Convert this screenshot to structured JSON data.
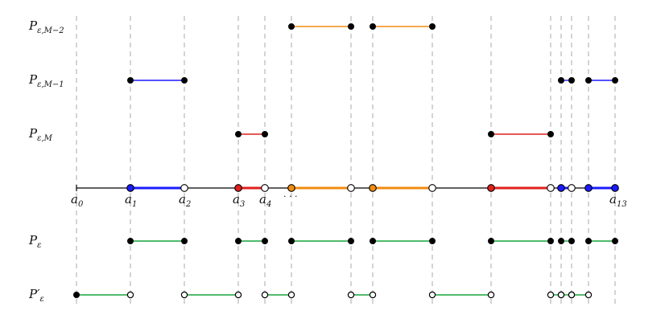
{
  "colors": {
    "grid": "#aaaaaa",
    "axis": "#000000",
    "black": "#000000",
    "blue": "#1a1aff",
    "red": "#e0201e",
    "orange": "#f08c10",
    "green": "#17a33b",
    "hollow_fill": "#ffffff"
  },
  "row_labels": [
    {
      "id": "m2",
      "main": "P",
      "sub": "ε,M−2"
    },
    {
      "id": "m1",
      "main": "P",
      "sub": "ε,M−1"
    },
    {
      "id": "m0",
      "main": "P",
      "sub": "ε,M"
    },
    {
      "id": "pe",
      "main": "P",
      "sub": "ε"
    },
    {
      "id": "pp",
      "main": "P′",
      "sub": "ε"
    }
  ],
  "axis_labels": [
    {
      "main": "a",
      "sub": "0",
      "at": 0
    },
    {
      "main": "a",
      "sub": "1",
      "at": 1
    },
    {
      "main": "a",
      "sub": "2",
      "at": 2
    },
    {
      "main": "a",
      "sub": "3",
      "at": 3
    },
    {
      "main": "a",
      "sub": "4",
      "at": 4
    },
    {
      "main": "a",
      "sub": "13",
      "at": 13
    }
  ],
  "ellipsis": "· · ·",
  "grid_columns": 14,
  "rows": {
    "m2": [
      {
        "from": 5,
        "to": 6,
        "color": "orange",
        "ends": [
          "filled",
          "filled"
        ]
      },
      {
        "from": 7,
        "to": 8,
        "color": "orange",
        "ends": [
          "filled",
          "filled"
        ]
      }
    ],
    "m1": [
      {
        "from": 1,
        "to": 2,
        "color": "blue",
        "ends": [
          "filled",
          "filled"
        ]
      },
      {
        "from": 11,
        "to": 11,
        "color": "blue",
        "ends": [
          "filled",
          "filled"
        ]
      },
      {
        "from": 12,
        "to": 13,
        "color": "blue",
        "ends": [
          "filled",
          "filled"
        ]
      }
    ],
    "m0": [
      {
        "from": 3,
        "to": 4,
        "color": "red",
        "ends": [
          "filled",
          "filled"
        ]
      },
      {
        "from": 9,
        "to": 10,
        "color": "red",
        "ends": [
          "filled",
          "filled"
        ]
      }
    ],
    "pe": [
      {
        "from": 1,
        "to": 2,
        "color": "green",
        "ends": [
          "filled",
          "filled"
        ]
      },
      {
        "from": 3,
        "to": 4,
        "color": "green",
        "ends": [
          "filled",
          "filled"
        ]
      },
      {
        "from": 5,
        "to": 6,
        "color": "green",
        "ends": [
          "filled",
          "filled"
        ]
      },
      {
        "from": 7,
        "to": 8,
        "color": "green",
        "ends": [
          "filled",
          "filled"
        ]
      },
      {
        "from": 9,
        "to": 10,
        "color": "green",
        "ends": [
          "filled",
          "filled"
        ]
      },
      {
        "from": 11,
        "to": 11,
        "color": "green",
        "ends": [
          "filled",
          "filled"
        ]
      },
      {
        "from": 12,
        "to": 13,
        "color": "green",
        "ends": [
          "filled",
          "filled"
        ]
      }
    ],
    "pp": [
      {
        "from": 0,
        "to": 1,
        "color": "green",
        "ends": [
          "filled",
          "hollow"
        ]
      },
      {
        "from": 2,
        "to": 3,
        "color": "green",
        "ends": [
          "hollow",
          "hollow"
        ]
      },
      {
        "from": 4,
        "to": 5,
        "color": "green",
        "ends": [
          "hollow",
          "hollow"
        ]
      },
      {
        "from": 6,
        "to": 7,
        "color": "green",
        "ends": [
          "hollow",
          "hollow"
        ]
      },
      {
        "from": 8,
        "to": 9,
        "color": "green",
        "ends": [
          "hollow",
          "hollow"
        ]
      },
      {
        "from": 10,
        "to": 10,
        "color": "green",
        "ends": [
          "hollow",
          "hollow"
        ]
      },
      {
        "from": 11,
        "to": 11,
        "color": "green",
        "ends": [
          "hollow",
          "hollow"
        ]
      },
      {
        "from": 12,
        "to": 12,
        "color": "green",
        "ends": [
          "hollow",
          "hollow"
        ]
      }
    ]
  },
  "axis_segments": [
    {
      "from": 1,
      "to": 2,
      "color": "blue",
      "ends": [
        "blue",
        "hollow"
      ]
    },
    {
      "from": 3,
      "to": 4,
      "color": "red",
      "ends": [
        "red",
        "hollow"
      ]
    },
    {
      "from": 5,
      "to": 6,
      "color": "orange",
      "ends": [
        "orange",
        "hollow"
      ]
    },
    {
      "from": 7,
      "to": 8,
      "color": "orange",
      "ends": [
        "orange",
        "hollow"
      ]
    },
    {
      "from": 9,
      "to": 10,
      "color": "red",
      "ends": [
        "red",
        "hollow"
      ]
    },
    {
      "from": 11,
      "to": 11,
      "color": "blue",
      "ends": [
        "blue",
        "hollow"
      ]
    },
    {
      "from": 12,
      "to": 13,
      "color": "blue",
      "ends": [
        "blue",
        "blue"
      ]
    }
  ]
}
